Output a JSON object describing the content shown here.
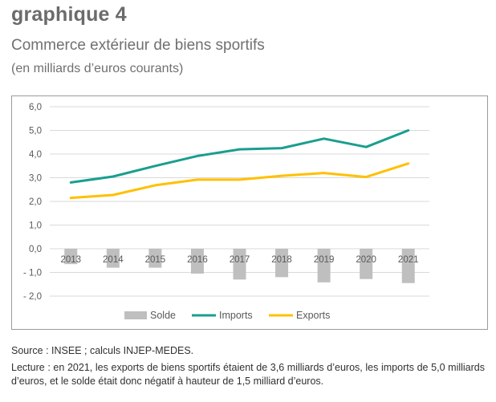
{
  "header": {
    "figure_label": "graphique 4",
    "title": "Commerce extérieur de biens sportifs",
    "subtitle": "(en milliards d’euros courants)"
  },
  "footer": {
    "source": "Source : INSEE ; calculs INJEP-MEDES.",
    "reading": "Lecture : en 2021, les exports de biens sportifs étaient de 3,6 milliards d’euros, les imports de 5,0 milliards d’euros, et le solde était donc négatif à hauteur de 1,5 milliard d’euros."
  },
  "colors": {
    "solde": "#bfbfbf",
    "imports": "#1a9e8f",
    "exports": "#ffc000",
    "grid": "#d9d9d9"
  },
  "chart_data": {
    "type": "bar+line",
    "categories": [
      "2013",
      "2014",
      "2015",
      "2016",
      "2017",
      "2018",
      "2019",
      "2020",
      "2021"
    ],
    "series": [
      {
        "name": "Solde",
        "type": "bar",
        "values": [
          -0.65,
          -0.8,
          -0.8,
          -1.05,
          -1.3,
          -1.2,
          -1.42,
          -1.28,
          -1.45
        ]
      },
      {
        "name": "Imports",
        "type": "line",
        "values": [
          2.8,
          3.05,
          3.5,
          3.92,
          4.2,
          4.25,
          4.65,
          4.3,
          5.0
        ]
      },
      {
        "name": "Exports",
        "type": "line",
        "values": [
          2.15,
          2.27,
          2.68,
          2.92,
          2.92,
          3.08,
          3.2,
          3.03,
          3.6
        ]
      }
    ],
    "yticks": [
      "6,0",
      "5,0",
      "4,0",
      "3,0",
      "2,0",
      "1,0",
      "0,0",
      "- 1,0",
      "- 2,0"
    ],
    "ylim": [
      -2,
      6
    ],
    "grid": true,
    "legend_position": "bottom"
  }
}
